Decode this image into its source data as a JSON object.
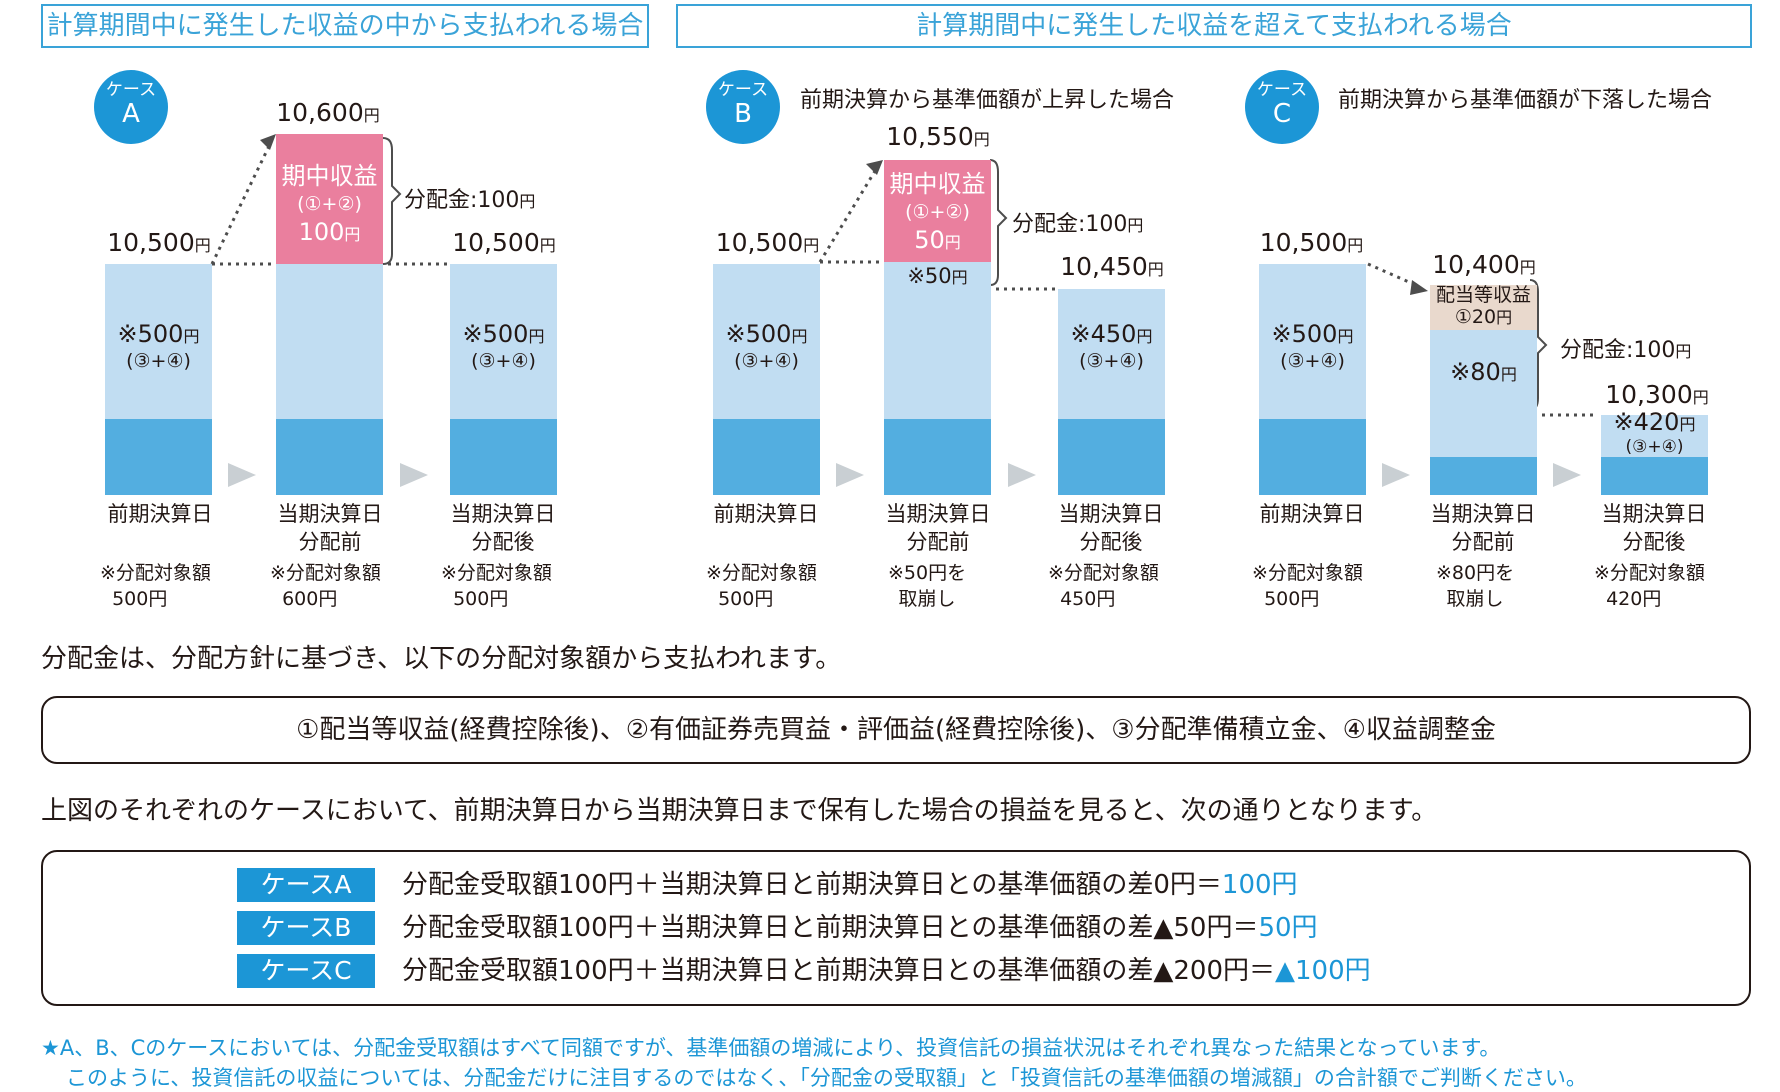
{
  "headers": {
    "left": "計算期間中に発生した収益の中から支払われる場合",
    "right": "計算期間中に発生した収益を超えて支払われる場合"
  },
  "cases": {
    "A": {
      "badge_top": "ケース",
      "badge_letter": "A"
    },
    "B": {
      "badge_top": "ケース",
      "badge_letter": "B",
      "title": "前期決算から基準価額が上昇した場合"
    },
    "C": {
      "badge_top": "ケース",
      "badge_letter": "C",
      "title": "前期決算から基準価額が下落した場合"
    }
  },
  "yen": "円",
  "bars": {
    "A1": {
      "value": "10,500",
      "inner": "※500",
      "inner_sub": "(③+④)",
      "label": "前期決算日",
      "note1": "※分配対象額",
      "note2": "500円"
    },
    "A2": {
      "value": "10,600",
      "pink1": "期中収益",
      "pink2": "(①+②)",
      "pink3": "100",
      "label1": "当期決算日",
      "label2": "分配前",
      "note1": "※分配対象額",
      "note2": "600円",
      "bracket": "分配金:100"
    },
    "A3": {
      "value": "10,500",
      "inner": "※500",
      "inner_sub": "(③+④)",
      "label1": "当期決算日",
      "label2": "分配後",
      "note1": "※分配対象額",
      "note2": "500円"
    },
    "B1": {
      "value": "10,500",
      "inner": "※500",
      "inner_sub": "(③+④)",
      "label": "前期決算日",
      "note1": "※分配対象額",
      "note2": "500円"
    },
    "B2": {
      "value": "10,550",
      "pink1": "期中収益",
      "pink2": "(①+②)",
      "pink3": "50",
      "inner": "※50",
      "label1": "当期決算日",
      "label2": "分配前",
      "note1": "※50円を",
      "note2": "取崩し",
      "bracket": "分配金:100"
    },
    "B3": {
      "value": "10,450",
      "inner": "※450",
      "inner_sub": "(③+④)",
      "label1": "当期決算日",
      "label2": "分配後",
      "note1": "※分配対象額",
      "note2": "450円"
    },
    "C1": {
      "value": "10,500",
      "inner": "※500",
      "inner_sub": "(③+④)",
      "label": "前期決算日",
      "note1": "※分配対象額",
      "note2": "500円"
    },
    "C2": {
      "value": "10,400",
      "tan1": "配当等収益",
      "tan2": "①20",
      "inner": "※80",
      "label1": "当期決算日",
      "label2": "分配前",
      "note1": "※80円を",
      "note2": "取崩し",
      "bracket": "分配金:100"
    },
    "C3": {
      "value": "10,300",
      "inner": "※420",
      "inner_sub": "(③+④)",
      "label1": "当期決算日",
      "label2": "分配後",
      "note1": "※分配対象額",
      "note2": "420円"
    }
  },
  "text": {
    "para1": "分配金は、分配方針に基づき、以下の分配対象額から支払われます。",
    "box1": "①配当等収益(経費控除後)、②有価証券売買益・評価益(経費控除後)、③分配準備積立金、④収益調整金",
    "para2": "上図のそれぞれのケースにおいて、前期決算日から当期決算日まで保有した場合の損益を見ると、次の通りとなります。"
  },
  "summary": [
    {
      "badge": "ケースA",
      "formula": "分配金受取額100円＋当期決算日と前期決算日との基準価額の差0円＝",
      "result": "100円"
    },
    {
      "badge": "ケースB",
      "formula": "分配金受取額100円＋当期決算日と前期決算日との基準価額の差▲50円＝",
      "result": "50円"
    },
    {
      "badge": "ケースC",
      "formula": "分配金受取額100円＋当期決算日と前期決算日との基準価額の差▲200円＝",
      "result": "▲100円"
    }
  ],
  "footer": {
    "line1": "★A、B、Cのケースにおいては、分配金受取額はすべて同額ですが、基準価額の増減により、投資信託の損益状況はそれぞれ異なった結果となっています。",
    "line2": "このように、投資信託の収益については、分配金だけに注目するのではなく、「分配金の受取額」と「投資信託の基準価額の増減額」の合計額でご判断ください。"
  },
  "colors": {
    "accent": "#1c96d6",
    "bar_light": "#c1ddf2",
    "bar_dark": "#53aee0",
    "pink": "#ea7f9e",
    "tan": "#e9d9cd"
  }
}
